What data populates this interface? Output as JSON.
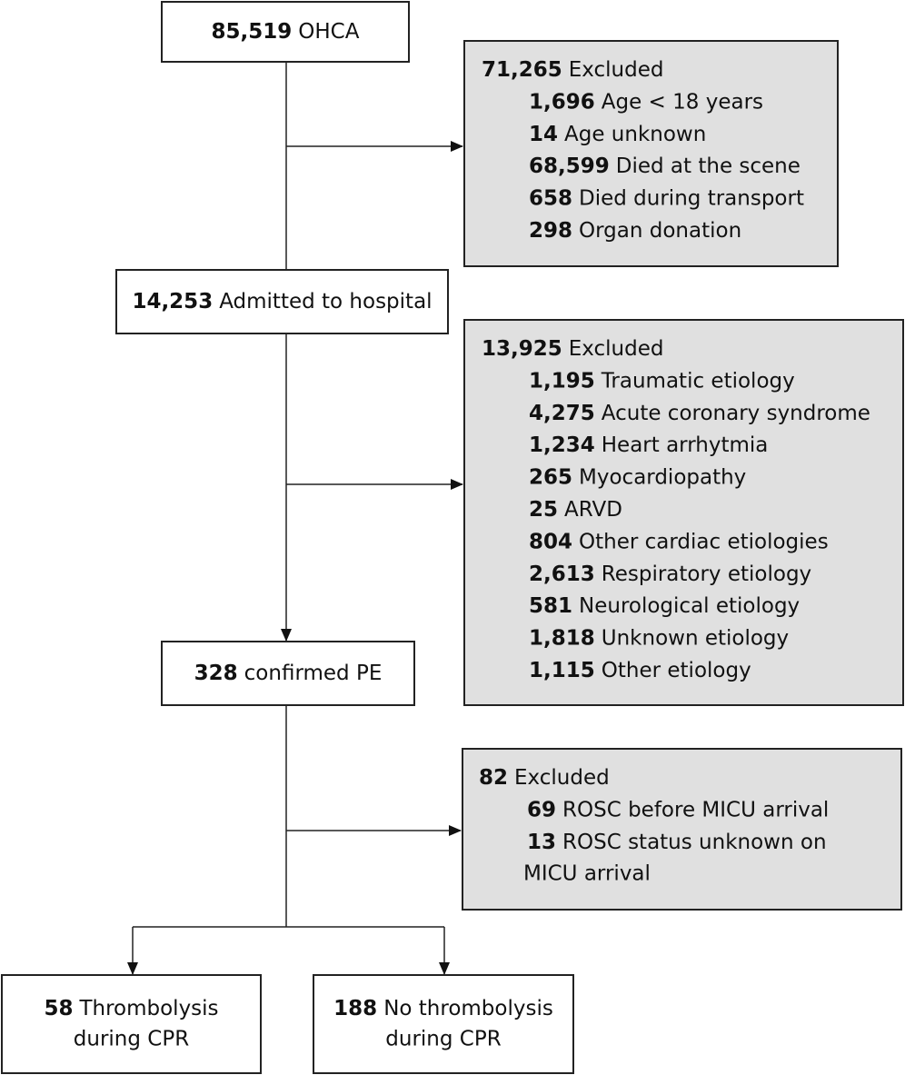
{
  "nodes": [
    {
      "count": "85,519",
      "label": [
        "OHCA"
      ]
    },
    {
      "count": "14,253",
      "label": [
        "Admitted to hospital"
      ]
    },
    {
      "count": "328",
      "label": [
        "confirmed PE"
      ]
    },
    {
      "count": "58",
      "label": [
        "Thrombolysis",
        "during CPR"
      ]
    },
    {
      "count": "188",
      "label": [
        "No thrombolysis",
        "during CPR"
      ]
    }
  ],
  "exclusions": [
    {
      "count": "71,265",
      "label": "Excluded",
      "items": [
        {
          "count": "1,696",
          "label": [
            "Age < 18 years"
          ]
        },
        {
          "count": "14",
          "label": [
            "Age unknown"
          ]
        },
        {
          "count": "68,599",
          "label": [
            "Died at the scene"
          ]
        },
        {
          "count": "658",
          "label": [
            "Died during transport"
          ]
        },
        {
          "count": "298",
          "label": [
            "Organ donation"
          ]
        }
      ]
    },
    {
      "count": "13,925",
      "label": "Excluded",
      "items": [
        {
          "count": "1,195",
          "label": [
            "Traumatic etiology"
          ]
        },
        {
          "count": "4,275",
          "label": [
            "Acute coronary syndrome"
          ]
        },
        {
          "count": "1,234",
          "label": [
            "Heart arrhytmia"
          ]
        },
        {
          "count": "265",
          "label": [
            "Myocardiopathy"
          ]
        },
        {
          "count": "25",
          "label": [
            "ARVD"
          ]
        },
        {
          "count": "804",
          "label": [
            "Other cardiac etiologies"
          ]
        },
        {
          "count": "2,613",
          "label": [
            "Respiratory etiology"
          ]
        },
        {
          "count": "581",
          "label": [
            "Neurological etiology"
          ]
        },
        {
          "count": "1,818",
          "label": [
            "Unknown etiology"
          ]
        },
        {
          "count": "1,115",
          "label": [
            "Other etiology"
          ]
        }
      ]
    },
    {
      "count": "82",
      "label": "Excluded",
      "items": [
        {
          "count": "69",
          "label": [
            "ROSC before MICU arrival"
          ]
        },
        {
          "count": "13",
          "label": [
            "ROSC status unknown on",
            "MICU arrival"
          ]
        }
      ]
    }
  ]
}
